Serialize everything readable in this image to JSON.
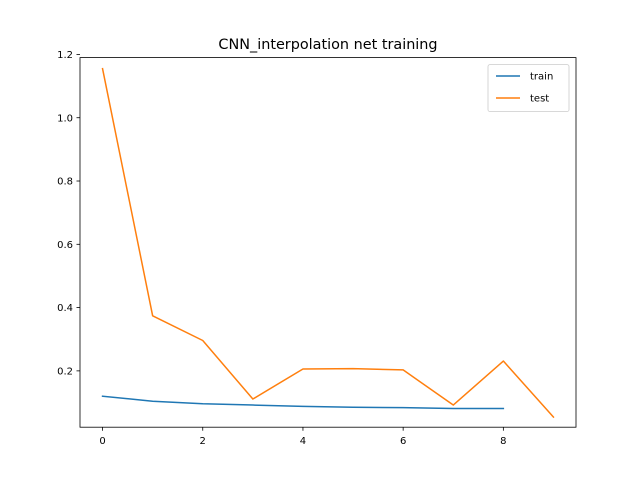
{
  "chart_data": {
    "type": "line",
    "title": "CNN_interpolation net training",
    "xlabel": "",
    "ylabel": "",
    "xlim": [
      -0.45,
      9.45
    ],
    "ylim": [
      0.022,
      1.19
    ],
    "grid": false,
    "legend_position": "top-right",
    "x_ticks": [
      0,
      2,
      4,
      6,
      8
    ],
    "x_tick_labels": [
      "0",
      "2",
      "4",
      "6",
      "8"
    ],
    "y_ticks": [
      0.2,
      0.4,
      0.6,
      0.8,
      1.0,
      1.2
    ],
    "y_tick_labels": [
      "0.2",
      "0.4",
      "0.6",
      "0.8",
      "1.0",
      "1.2"
    ],
    "series": [
      {
        "name": "train",
        "color": "#1f77b4",
        "x": [
          0,
          1,
          2,
          3,
          4,
          5,
          6,
          7,
          8
        ],
        "y": [
          0.12,
          0.104,
          0.096,
          0.092,
          0.088,
          0.085,
          0.084,
          0.081,
          0.081
        ]
      },
      {
        "name": "test",
        "color": "#ff7f0e",
        "x": [
          0,
          1,
          2,
          3,
          4,
          5,
          6,
          7,
          8,
          9
        ],
        "y": [
          1.155,
          0.374,
          0.296,
          0.111,
          0.206,
          0.207,
          0.203,
          0.092,
          0.231,
          0.054
        ]
      }
    ]
  }
}
